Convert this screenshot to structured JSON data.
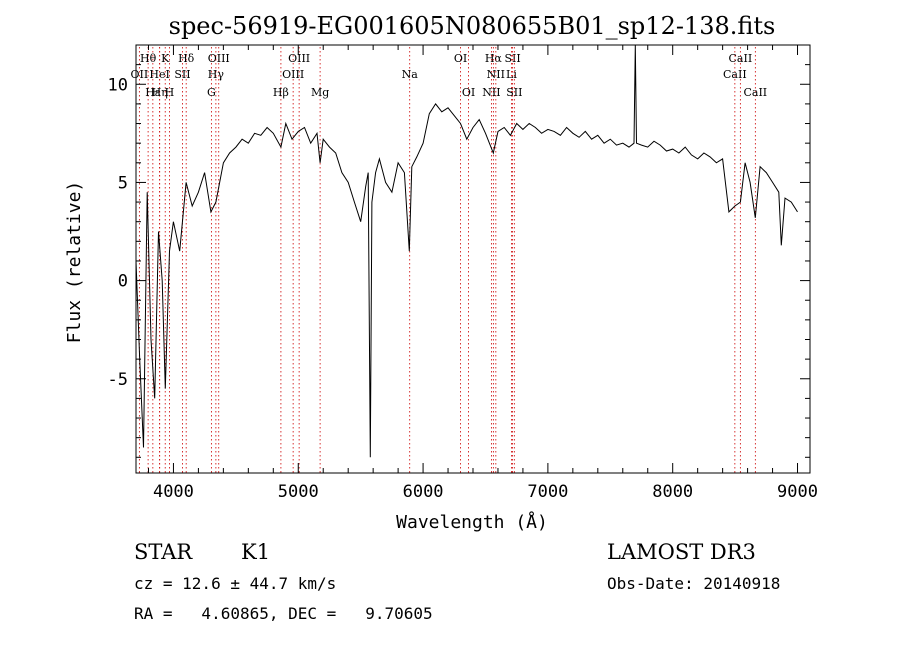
{
  "chart_data": {
    "type": "line",
    "title": "spec-56919-EG001605N080655B01_sp12-138.fits",
    "xlabel": "Wavelength (Å)",
    "ylabel": "Flux (relative)",
    "xlim": [
      3700,
      9100
    ],
    "ylim": [
      -9.8,
      12
    ],
    "xticks": [
      4000,
      5000,
      6000,
      7000,
      8000,
      9000
    ],
    "yticks": [
      -5,
      0,
      5,
      10
    ],
    "line_color": "#000000",
    "marker_color": "#cc0000",
    "spectrum": {
      "x": [
        3700,
        3730,
        3760,
        3790,
        3820,
        3850,
        3880,
        3910,
        3935,
        3968,
        4000,
        4050,
        4101,
        4150,
        4200,
        4250,
        4300,
        4340,
        4400,
        4450,
        4500,
        4550,
        4600,
        4650,
        4700,
        4750,
        4800,
        4861,
        4900,
        4950,
        5000,
        5050,
        5100,
        5150,
        5175,
        5200,
        5250,
        5300,
        5350,
        5400,
        5450,
        5500,
        5540,
        5560,
        5577,
        5590,
        5620,
        5650,
        5700,
        5750,
        5800,
        5850,
        5890,
        5910,
        5950,
        6000,
        6050,
        6100,
        6150,
        6200,
        6250,
        6300,
        6350,
        6400,
        6450,
        6500,
        6563,
        6600,
        6650,
        6700,
        6750,
        6800,
        6850,
        6900,
        6950,
        7000,
        7050,
        7100,
        7150,
        7200,
        7250,
        7300,
        7350,
        7400,
        7450,
        7500,
        7550,
        7600,
        7650,
        7690,
        7700,
        7710,
        7750,
        7800,
        7850,
        7900,
        7950,
        8000,
        8050,
        8100,
        8150,
        8200,
        8250,
        8300,
        8350,
        8400,
        8450,
        8498,
        8542,
        8580,
        8620,
        8662,
        8700,
        8750,
        8800,
        8850,
        8870,
        8900,
        8950,
        9000
      ],
      "y": [
        1.0,
        -4.0,
        -8.5,
        4.5,
        -3.0,
        -6.0,
        2.5,
        0.0,
        -5.5,
        1.5,
        3.0,
        1.5,
        5.0,
        3.8,
        4.5,
        5.5,
        3.5,
        4.0,
        6.0,
        6.5,
        6.8,
        7.2,
        7.0,
        7.5,
        7.4,
        7.8,
        7.5,
        6.8,
        8.0,
        7.2,
        7.6,
        7.8,
        7.0,
        7.5,
        6.0,
        7.2,
        6.8,
        6.5,
        5.5,
        5.0,
        4.0,
        3.0,
        4.8,
        5.5,
        -9.0,
        4.0,
        5.5,
        6.2,
        5.0,
        4.5,
        6.0,
        5.5,
        1.5,
        5.8,
        6.3,
        7.0,
        8.5,
        9.0,
        8.6,
        8.8,
        8.4,
        8.0,
        7.2,
        7.8,
        8.2,
        7.5,
        6.5,
        7.6,
        7.8,
        7.4,
        8.0,
        7.7,
        8.0,
        7.8,
        7.5,
        7.7,
        7.6,
        7.4,
        7.8,
        7.5,
        7.3,
        7.6,
        7.2,
        7.4,
        7.0,
        7.2,
        6.9,
        7.0,
        6.8,
        7.0,
        12.0,
        7.0,
        6.9,
        6.8,
        7.1,
        6.9,
        6.6,
        6.7,
        6.5,
        6.8,
        6.4,
        6.2,
        6.5,
        6.3,
        6.0,
        6.2,
        3.5,
        3.8,
        4.0,
        6.0,
        5.0,
        3.2,
        5.8,
        5.5,
        5.0,
        4.5,
        1.8,
        4.2,
        4.0,
        3.5
      ]
    },
    "lines": [
      {
        "label": "Hθ",
        "x": 3797,
        "row": 0
      },
      {
        "label": "K",
        "x": 3934,
        "row": 0
      },
      {
        "label": "Hδ",
        "x": 4102,
        "row": 0
      },
      {
        "label": "OIII",
        "x": 4363,
        "row": 0
      },
      {
        "label": "OIII",
        "x": 5007,
        "row": 0
      },
      {
        "label": "OI",
        "x": 6300,
        "row": 0
      },
      {
        "label": "Hα",
        "x": 6563,
        "row": 0
      },
      {
        "label": "SII",
        "x": 6717,
        "row": 0
      },
      {
        "label": "CaII",
        "x": 8542,
        "row": 0
      },
      {
        "label": "OII",
        "x": 3727,
        "row": 1
      },
      {
        "label": "HeI",
        "x": 3889,
        "row": 1
      },
      {
        "label": "SII",
        "x": 4072,
        "row": 1
      },
      {
        "label": "Hγ",
        "x": 4340,
        "row": 1
      },
      {
        "label": "OIII",
        "x": 4959,
        "row": 1
      },
      {
        "label": "Na",
        "x": 5893,
        "row": 1
      },
      {
        "label": "NII",
        "x": 6583,
        "row": 1
      },
      {
        "label": "Li",
        "x": 6708,
        "row": 1
      },
      {
        "label": "CaII",
        "x": 8498,
        "row": 1
      },
      {
        "label": "Hε",
        "x": 3835,
        "row": 2
      },
      {
        "label": "Hη",
        "x": 3890,
        "row": 2
      },
      {
        "label": "H",
        "x": 3968,
        "row": 2
      },
      {
        "label": "G",
        "x": 4304,
        "row": 2
      },
      {
        "label": "Hβ",
        "x": 4861,
        "row": 2
      },
      {
        "label": "Mg",
        "x": 5175,
        "row": 2
      },
      {
        "label": "OI",
        "x": 6364,
        "row": 2
      },
      {
        "label": "NII",
        "x": 6548,
        "row": 2
      },
      {
        "label": "SII",
        "x": 6731,
        "row": 2
      },
      {
        "label": "CaII",
        "x": 8662,
        "row": 2
      }
    ]
  },
  "info": {
    "object_type": "STAR",
    "subclass": "K1",
    "survey": "LAMOST DR3",
    "redshift_text": "cz = 12.6 ± 44.7 km/s",
    "obs_date_text": "Obs-Date: 20140918",
    "coords_text": "RA =   4.60865, DEC =   9.70605"
  }
}
